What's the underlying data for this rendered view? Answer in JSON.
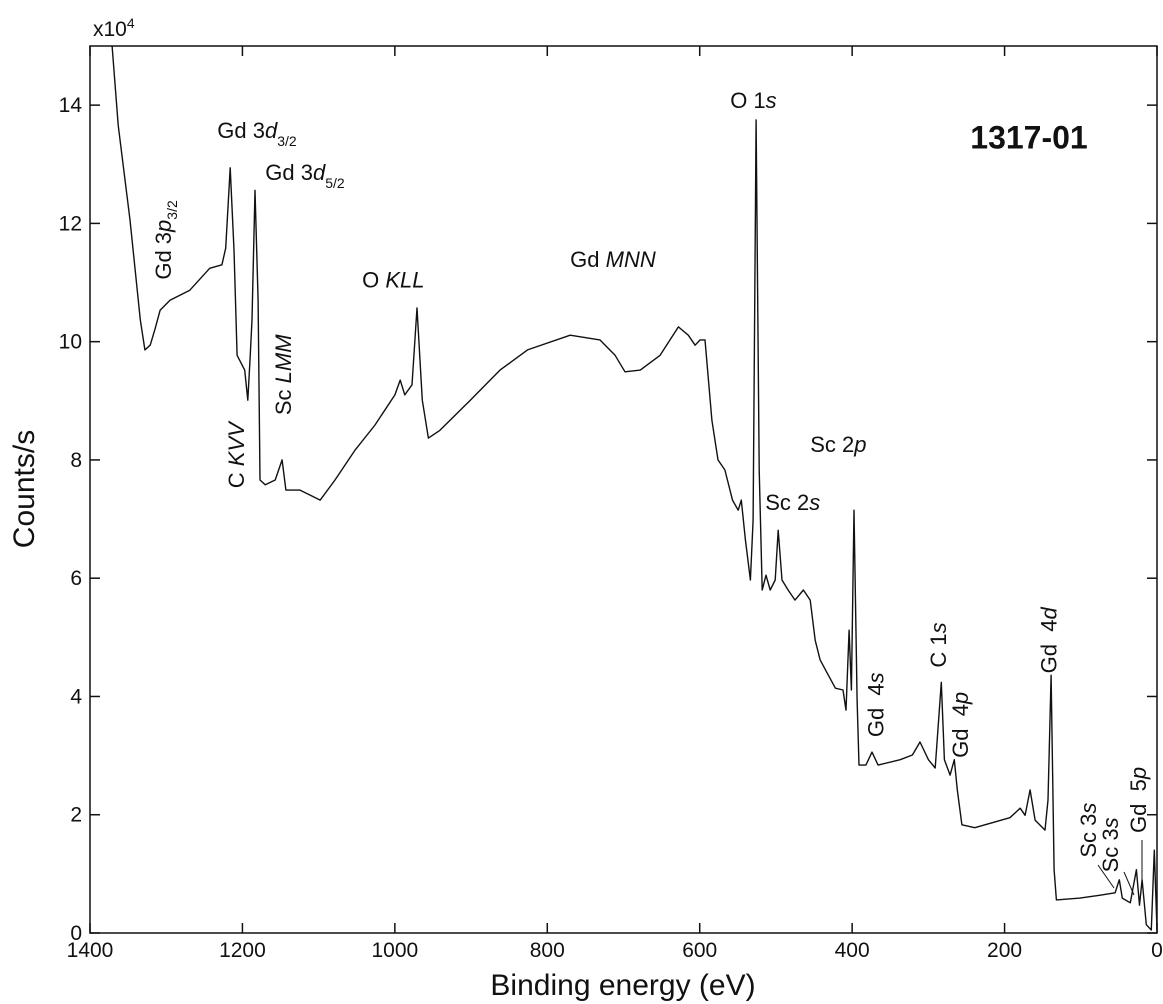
{
  "chart_data": {
    "type": "line",
    "xlabel": "Binding energy (eV)",
    "ylabel": "Counts/s",
    "y_multiplier": [
      {
        "text": "x10"
      },
      {
        "text": "4",
        "sup": true
      }
    ],
    "xlim": [
      1400,
      0
    ],
    "ylim": [
      0,
      15
    ],
    "xticks": [
      1400,
      1200,
      1000,
      800,
      600,
      400,
      200,
      0
    ],
    "yticks": [
      0,
      2,
      4,
      6,
      8,
      10,
      12,
      14
    ],
    "x": [
      1371,
      1363,
      1347.5,
      1334,
      1328,
      1321,
      1315,
      1308,
      1295,
      1269,
      1243,
      1227,
      1222,
      1216,
      1211,
      1207,
      1197,
      1193,
      1190,
      1187.5,
      1183.5,
      1179.5,
      1177,
      1170,
      1157,
      1148,
      1143,
      1124.5,
      1098,
      1078.5,
      1052,
      1026,
      1000,
      993,
      987,
      977.5,
      971,
      964,
      956,
      941,
      901,
      862,
      826,
      770,
      731,
      711,
      698,
      678,
      652,
      628,
      615,
      606,
      599.5,
      593,
      584,
      576,
      567,
      557,
      549.5,
      545.5,
      540,
      533.5,
      530,
      526,
      522,
      518,
      513,
      507.5,
      501,
      497,
      492,
      484,
      475,
      464,
      455,
      448.5,
      442,
      435,
      422,
      412,
      408,
      404,
      401,
      397.5,
      393.5,
      391,
      382,
      374,
      366,
      337,
      321,
      311,
      300,
      291,
      283,
      279,
      271.5,
      266,
      262,
      256,
      239,
      193,
      179.5,
      173,
      166.5,
      160,
      147,
      143,
      139,
      135,
      132,
      101,
      74.5,
      55,
      49.5,
      45.5,
      35,
      27,
      23,
      19.5,
      14,
      7.5,
      3.5,
      0
    ],
    "series": [
      {
        "color": "#111111",
        "values": [
          15,
          13.66,
          12.06,
          10.37,
          9.86,
          9.94,
          10.2,
          10.53,
          10.7,
          10.87,
          11.24,
          11.3,
          11.58,
          12.94,
          11.55,
          9.77,
          9.52,
          9.01,
          9.69,
          10.37,
          12.56,
          10.7,
          7.66,
          7.58,
          7.66,
          8.0,
          7.49,
          7.49,
          7.32,
          7.66,
          8.17,
          8.59,
          9.1,
          9.35,
          9.1,
          9.27,
          10.57,
          9.01,
          8.37,
          8.5,
          9.01,
          9.52,
          9.86,
          10.11,
          10.03,
          9.77,
          9.49,
          9.52,
          9.77,
          10.25,
          10.11,
          9.94,
          10.03,
          10.03,
          8.67,
          8.0,
          7.83,
          7.32,
          7.15,
          7.32,
          6.65,
          5.97,
          6.98,
          13.75,
          7.83,
          5.8,
          6.05,
          5.8,
          5.97,
          6.81,
          5.97,
          5.8,
          5.63,
          5.8,
          5.63,
          4.95,
          4.62,
          4.45,
          4.14,
          4.11,
          3.77,
          5.12,
          4.11,
          7.15,
          3.94,
          2.84,
          2.84,
          3.06,
          2.84,
          2.93,
          3.01,
          3.23,
          2.93,
          2.79,
          4.24,
          2.93,
          2.67,
          2.93,
          2.42,
          1.83,
          1.78,
          1.95,
          2.11,
          1.99,
          2.42,
          1.91,
          1.74,
          2.25,
          4.36,
          1.07,
          0.56,
          0.59,
          0.64,
          0.68,
          0.9,
          0.59,
          0.51,
          1.07,
          0.47,
          0.9,
          0.14,
          0.05,
          1.4,
          0.05
        ]
      }
    ],
    "annotations": [
      {
        "x": 1301.6,
        "y": 11.72,
        "rotate": true,
        "parts": [
          {
            "text": "Gd 3"
          },
          {
            "text": "p",
            "italic": true
          },
          {
            "text": "3/2",
            "sub": true
          }
        ]
      },
      {
        "x": 1233,
        "y": 13.44,
        "parts": [
          {
            "text": "Gd 3"
          },
          {
            "text": "d",
            "italic": true
          },
          {
            "text": "3/2",
            "sub": true
          }
        ]
      },
      {
        "x": 1170,
        "y": 12.73,
        "parts": [
          {
            "text": "Gd 3"
          },
          {
            "text": "d",
            "italic": true
          },
          {
            "text": "5/2",
            "sub": true
          }
        ]
      },
      {
        "x": 1144,
        "y": 9.44,
        "rotate": true,
        "parts": [
          {
            "text": "Sc "
          },
          {
            "text": "LMM",
            "italic": true
          }
        ]
      },
      {
        "x": 1206,
        "y": 8.08,
        "rotate": true,
        "parts": [
          {
            "text": "C "
          },
          {
            "text": "KVV",
            "italic": true
          }
        ]
      },
      {
        "x": 1043,
        "y": 10.92,
        "parts": [
          {
            "text": "O "
          },
          {
            "text": "KLL",
            "italic": true
          }
        ]
      },
      {
        "x": 770,
        "y": 11.26,
        "parts": [
          {
            "text": "Gd "
          },
          {
            "text": "MNN",
            "italic": true
          }
        ]
      },
      {
        "x": 560,
        "y": 13.95,
        "parts": [
          {
            "text": "O 1"
          },
          {
            "text": "s",
            "italic": true
          }
        ]
      },
      {
        "x": 455,
        "y": 8.13,
        "parts": [
          {
            "text": "Sc 2"
          },
          {
            "text": "p",
            "italic": true
          }
        ]
      },
      {
        "x": 514,
        "y": 7.15,
        "parts": [
          {
            "text": "Sc 2"
          },
          {
            "text": "s",
            "italic": true
          }
        ]
      },
      {
        "x": 367,
        "y": 3.86,
        "rotate": true,
        "parts": [
          {
            "text": "Gd  4"
          },
          {
            "text": "s",
            "italic": true
          }
        ]
      },
      {
        "x": 285,
        "y": 4.87,
        "rotate": true,
        "parts": [
          {
            "text": "C 1"
          },
          {
            "text": "s",
            "italic": true
          }
        ]
      },
      {
        "x": 256,
        "y": 3.52,
        "rotate": true,
        "parts": [
          {
            "text": "Gd  4"
          },
          {
            "text": "p",
            "italic": true
          }
        ]
      },
      {
        "x": 140,
        "y": 4.95,
        "rotate": true,
        "parts": [
          {
            "text": "Gd  4"
          },
          {
            "text": "d",
            "italic": true
          }
        ]
      },
      {
        "x": 88,
        "y": 1.74,
        "rotate": true,
        "parts": [
          {
            "text": "Sc 3"
          },
          {
            "text": "s",
            "italic": true
          }
        ]
      },
      {
        "x": 59,
        "y": 1.49,
        "rotate": true,
        "parts": [
          {
            "text": "Sc 3"
          },
          {
            "text": "s",
            "italic": true
          }
        ]
      },
      {
        "x": 22,
        "y": 2.25,
        "rotate": true,
        "parts": [
          {
            "text": "Gd  5"
          },
          {
            "text": "p",
            "italic": true
          }
        ]
      },
      {
        "x": 245,
        "y": 13.27,
        "bold": true,
        "parts": [
          {
            "text": "1317-01"
          }
        ]
      }
    ]
  }
}
